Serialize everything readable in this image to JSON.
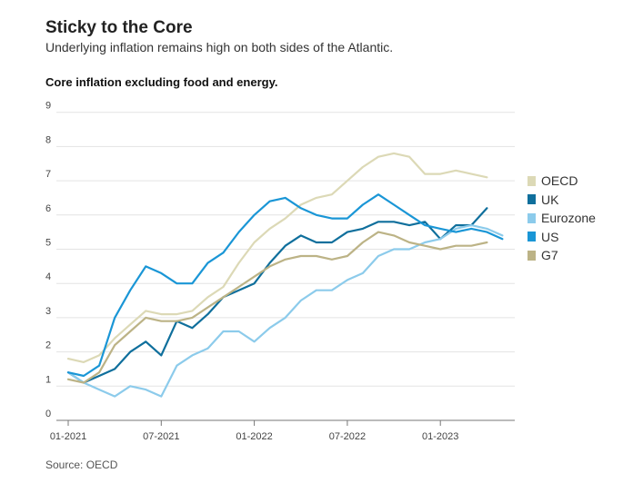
{
  "header": {
    "title": "Sticky to the Core",
    "subtitle": "Underlying inflation remains high on both sides of the Atlantic."
  },
  "footer": {
    "source": "Source: OECD"
  },
  "chart_data": {
    "type": "line",
    "title": "Core inflation excluding food and energy.",
    "xlabel": "",
    "ylabel": "",
    "ylim": [
      0,
      9
    ],
    "y_ticks": [
      "0",
      "1",
      "2",
      "3",
      "4",
      "5",
      "6",
      "7",
      "8",
      "9"
    ],
    "x_ticks": [
      "01-2021",
      "07-2021",
      "01-2022",
      "07-2022",
      "01-2023"
    ],
    "x": [
      "2021-01",
      "2021-02",
      "2021-03",
      "2021-04",
      "2021-05",
      "2021-06",
      "2021-07",
      "2021-08",
      "2021-09",
      "2021-10",
      "2021-11",
      "2021-12",
      "2022-01",
      "2022-02",
      "2022-03",
      "2022-04",
      "2022-05",
      "2022-06",
      "2022-07",
      "2022-08",
      "2022-09",
      "2022-10",
      "2022-11",
      "2022-12",
      "2023-01",
      "2023-02",
      "2023-03",
      "2023-04",
      "2023-05"
    ],
    "grid": "horizontal",
    "legend_position": "right",
    "series": [
      {
        "name": "OECD",
        "color": "#dcd9b6",
        "values": [
          1.8,
          1.7,
          1.9,
          2.4,
          2.8,
          3.2,
          3.1,
          3.1,
          3.2,
          3.6,
          3.9,
          4.6,
          5.2,
          5.6,
          5.9,
          6.3,
          6.5,
          6.6,
          7.0,
          7.4,
          7.7,
          7.8,
          7.7,
          7.2,
          7.2,
          7.3,
          7.2,
          7.1,
          null
        ]
      },
      {
        "name": "UK",
        "color": "#0f6f9c",
        "values": [
          1.4,
          1.1,
          1.3,
          1.5,
          2.0,
          2.3,
          1.9,
          2.9,
          2.7,
          3.1,
          3.6,
          3.8,
          4.0,
          4.6,
          5.1,
          5.4,
          5.2,
          5.2,
          5.5,
          5.6,
          5.8,
          5.8,
          5.7,
          5.8,
          5.3,
          5.7,
          5.7,
          6.2,
          null
        ]
      },
      {
        "name": "Eurozone",
        "color": "#8ccbeb",
        "values": [
          1.4,
          1.1,
          0.9,
          0.7,
          1.0,
          0.9,
          0.7,
          1.6,
          1.9,
          2.1,
          2.6,
          2.6,
          2.3,
          2.7,
          3.0,
          3.5,
          3.8,
          3.8,
          4.1,
          4.3,
          4.8,
          5.0,
          5.0,
          5.2,
          5.3,
          5.6,
          5.7,
          5.6,
          5.4
        ]
      },
      {
        "name": "US",
        "color": "#1a96d6",
        "values": [
          1.4,
          1.3,
          1.6,
          3.0,
          3.8,
          4.5,
          4.3,
          4.0,
          4.0,
          4.6,
          4.9,
          5.5,
          6.0,
          6.4,
          6.5,
          6.2,
          6.0,
          5.9,
          5.9,
          6.3,
          6.6,
          6.3,
          6.0,
          5.7,
          5.6,
          5.5,
          5.6,
          5.5,
          5.3
        ]
      },
      {
        "name": "G7",
        "color": "#bcb386",
        "values": [
          1.2,
          1.1,
          1.4,
          2.2,
          2.6,
          3.0,
          2.9,
          2.9,
          3.0,
          3.3,
          3.6,
          3.9,
          4.2,
          4.5,
          4.7,
          4.8,
          4.8,
          4.7,
          4.8,
          5.2,
          5.5,
          5.4,
          5.2,
          5.1,
          5.0,
          5.1,
          5.1,
          5.2,
          null
        ]
      }
    ]
  }
}
